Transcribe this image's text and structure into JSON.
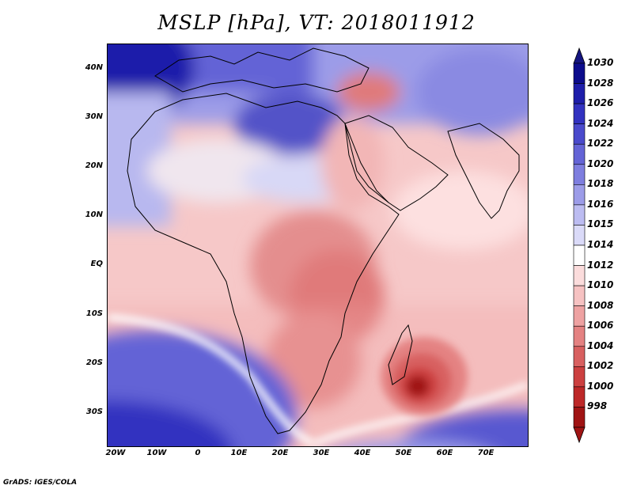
{
  "title": "MSLP [hPa], VT: 2018011912",
  "footer": "GrADS: IGES/COLA",
  "lat_labels": [
    "40N",
    "30N",
    "20N",
    "10N",
    "EQ",
    "10S",
    "20S",
    "30S"
  ],
  "lon_labels": [
    "20W",
    "10W",
    "0",
    "10E",
    "20E",
    "30E",
    "40E",
    "50E",
    "60E",
    "70E"
  ],
  "colorbar": {
    "levels": [
      "1030",
      "1028",
      "1026",
      "1024",
      "1022",
      "1020",
      "1018",
      "1016",
      "1015",
      "1014",
      "1012",
      "1010",
      "1008",
      "1006",
      "1004",
      "1002",
      "1000",
      "998"
    ],
    "colors": [
      "#0c0c8c",
      "#1e1eaa",
      "#3232c0",
      "#4a4acc",
      "#6464d6",
      "#7e7edf",
      "#9c9ce8",
      "#bcbcf1",
      "#dadaf8",
      "#ffffff",
      "#fbdcdc",
      "#f6c2c2",
      "#eea2a2",
      "#e48282",
      "#d86060",
      "#cc4040",
      "#bd2828",
      "#a01414"
    ],
    "end_colors": {
      "top": "#141480",
      "bottom": "#a01414"
    }
  },
  "features": {
    "low_center": {
      "label": "998",
      "color": "#a01414"
    }
  }
}
